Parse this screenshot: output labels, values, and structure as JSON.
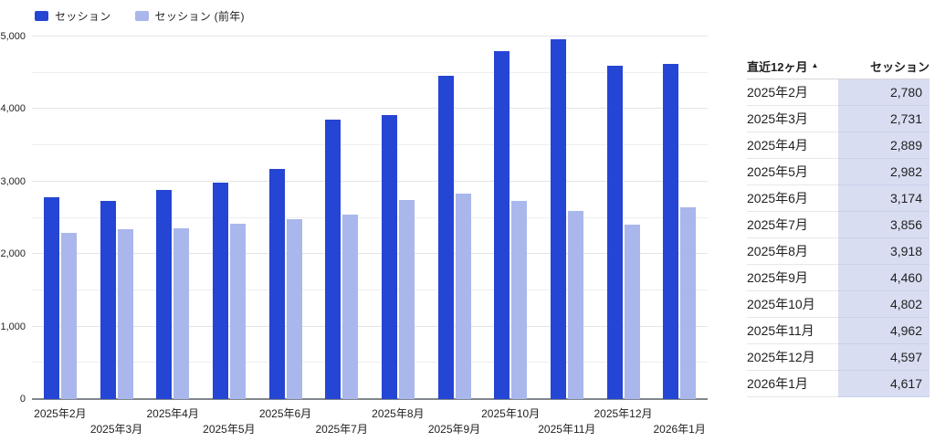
{
  "chart": {
    "legend": [
      {
        "label": "セッション",
        "color": "#2545d4"
      },
      {
        "label": "セッション (前年)",
        "color": "#a9b7ec"
      }
    ]
  },
  "chart_data": {
    "type": "bar",
    "title": "",
    "xlabel": "",
    "ylabel": "",
    "categories": [
      "2025年2月",
      "2025年3月",
      "2025年4月",
      "2025年5月",
      "2025年6月",
      "2025年7月",
      "2025年8月",
      "2025年9月",
      "2025年10月",
      "2025年11月",
      "2025年12月",
      "2026年1月"
    ],
    "series": [
      {
        "name": "セッション",
        "color": "#2545d4",
        "values": [
          2780,
          2731,
          2889,
          2982,
          3174,
          3856,
          3918,
          4460,
          4802,
          4962,
          4597,
          4617
        ]
      },
      {
        "name": "セッション (前年)",
        "color": "#a9b7ec",
        "values": [
          2290,
          2340,
          2350,
          2420,
          2480,
          2540,
          2750,
          2830,
          2730,
          2590,
          2400,
          2650
        ]
      }
    ],
    "ylim": [
      0,
      5000
    ],
    "ytick_labels": [
      "0",
      "1,000",
      "2,000",
      "3,000",
      "4,000",
      "5,000"
    ],
    "ytick_step": 1000,
    "minor_grid_step": 500,
    "grid": true,
    "legend_position": "top-left"
  },
  "table": {
    "header": {
      "month_label": "直近12ヶ月",
      "sort_arrow": "▲",
      "value_label": "セッション"
    },
    "value_column_bg": "#d8ddf2",
    "rows": [
      {
        "month": "2025年2月",
        "value": "2,780"
      },
      {
        "month": "2025年3月",
        "value": "2,731"
      },
      {
        "month": "2025年4月",
        "value": "2,889"
      },
      {
        "month": "2025年5月",
        "value": "2,982"
      },
      {
        "month": "2025年6月",
        "value": "3,174"
      },
      {
        "month": "2025年7月",
        "value": "3,856"
      },
      {
        "month": "2025年8月",
        "value": "3,918"
      },
      {
        "month": "2025年9月",
        "value": "4,460"
      },
      {
        "month": "2025年10月",
        "value": "4,802"
      },
      {
        "month": "2025年11月",
        "value": "4,962"
      },
      {
        "month": "2025年12月",
        "value": "4,597"
      },
      {
        "month": "2026年1月",
        "value": "4,617"
      }
    ]
  }
}
